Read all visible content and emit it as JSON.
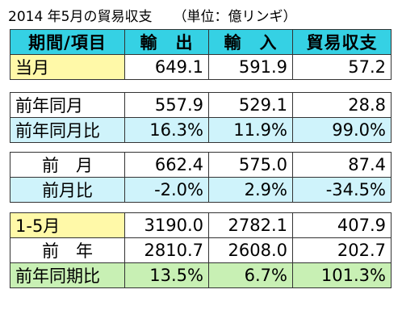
{
  "title": "2014 年5月の貿易収支",
  "unit": "（単位：億リンギ）",
  "header": [
    "期間/項目",
    "輸　出",
    "輸　入",
    "貿易収支"
  ],
  "groups": [
    [
      {
        "label": "当月",
        "values": [
          "649.1",
          "591.9",
          "57.2"
        ],
        "style": "y",
        "align": "left"
      }
    ],
    [
      {
        "label": "前年同月",
        "values": [
          "557.9",
          "529.1",
          "28.8"
        ],
        "style": "w",
        "align": "left"
      },
      {
        "label": "前年同月比",
        "values": [
          "16.3%",
          "11.9%",
          "99.0%"
        ],
        "style": "b",
        "align": "left"
      }
    ],
    [
      {
        "label": "前　月",
        "values": [
          "662.4",
          "575.0",
          "87.4"
        ],
        "style": "w",
        "align": "center"
      },
      {
        "label": "前月比",
        "values": [
          "-2.0%",
          "2.9%",
          "-34.5%"
        ],
        "style": "b",
        "align": "center"
      }
    ],
    [
      {
        "label": "1-5月",
        "values": [
          "3190.0",
          "2782.1",
          "407.9"
        ],
        "style": "y",
        "align": "left"
      },
      {
        "label": "前　年",
        "values": [
          "2810.7",
          "2608.0",
          "202.7"
        ],
        "style": "w",
        "align": "center"
      },
      {
        "label": "前年同期比",
        "values": [
          "13.5%",
          "6.7%",
          "101.3%"
        ],
        "style": "g",
        "align": "left"
      }
    ]
  ]
}
